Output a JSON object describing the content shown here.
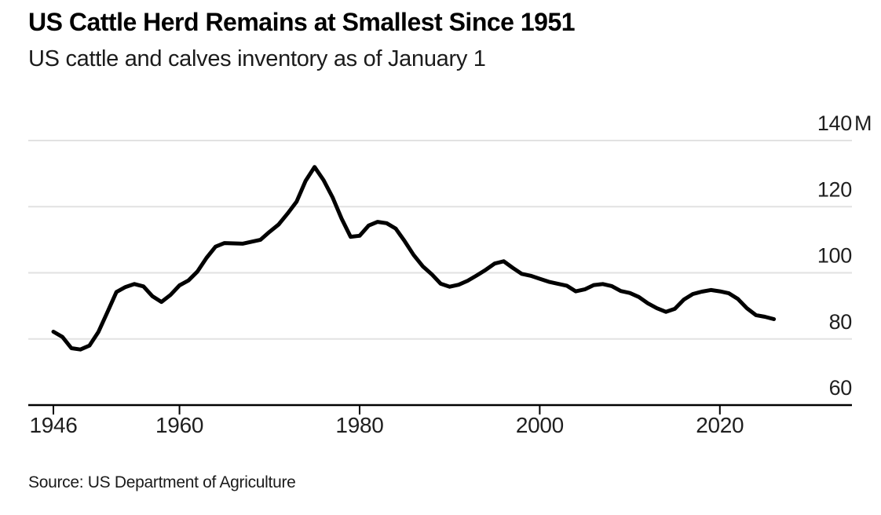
{
  "header": {
    "title": "US Cattle Herd Remains at Smallest Since 1951",
    "subtitle": "US cattle and calves inventory as of January 1"
  },
  "footer": {
    "source": "Source: US Department of Agriculture"
  },
  "chart_data": {
    "type": "line",
    "title": "US Cattle Herd Remains at Smallest Since 1951",
    "subtitle": "US cattle and calves inventory as of January 1",
    "series_name": "US cattle and calves inventory (million head, January 1)",
    "unit_suffix": "M",
    "xlim": [
      1943,
      2035
    ],
    "ylim": [
      60,
      140
    ],
    "grid": "horizontal",
    "legend": "none",
    "x_ticks": [
      {
        "value": 1946,
        "label": "1946"
      },
      {
        "value": 1960,
        "label": "1960"
      },
      {
        "value": 1980,
        "label": "1980"
      },
      {
        "value": 2000,
        "label": "2000"
      },
      {
        "value": 2020,
        "label": "2020"
      }
    ],
    "y_ticks": [
      {
        "value": 140,
        "label": "140",
        "suffix": "M",
        "gridline": true
      },
      {
        "value": 120,
        "label": "120",
        "suffix": "",
        "gridline": true
      },
      {
        "value": 100,
        "label": "100",
        "suffix": "",
        "gridline": true
      },
      {
        "value": 80,
        "label": "80",
        "suffix": "",
        "gridline": true
      },
      {
        "value": 60,
        "label": "60",
        "suffix": "",
        "gridline": false
      }
    ],
    "colors": {
      "line": "#000000",
      "grid": "#e2e2e2",
      "axis": "#000000",
      "tick_text": "#1f1f1f",
      "background": "#ffffff"
    },
    "points": [
      [
        1946,
        82.2
      ],
      [
        1947,
        80.6
      ],
      [
        1948,
        77.2
      ],
      [
        1949,
        76.8
      ],
      [
        1950,
        78.0
      ],
      [
        1951,
        82.1
      ],
      [
        1952,
        88.1
      ],
      [
        1953,
        94.2
      ],
      [
        1954,
        95.7
      ],
      [
        1955,
        96.6
      ],
      [
        1956,
        95.9
      ],
      [
        1957,
        92.9
      ],
      [
        1958,
        91.2
      ],
      [
        1959,
        93.3
      ],
      [
        1960,
        96.2
      ],
      [
        1961,
        97.7
      ],
      [
        1962,
        100.4
      ],
      [
        1963,
        104.5
      ],
      [
        1964,
        107.9
      ],
      [
        1965,
        109.0
      ],
      [
        1966,
        108.9
      ],
      [
        1967,
        108.8
      ],
      [
        1968,
        109.4
      ],
      [
        1969,
        110.0
      ],
      [
        1970,
        112.4
      ],
      [
        1971,
        114.6
      ],
      [
        1972,
        117.9
      ],
      [
        1973,
        121.5
      ],
      [
        1974,
        127.8
      ],
      [
        1975,
        132.0
      ],
      [
        1976,
        128.0
      ],
      [
        1977,
        122.8
      ],
      [
        1978,
        116.4
      ],
      [
        1979,
        110.9
      ],
      [
        1980,
        111.2
      ],
      [
        1981,
        114.3
      ],
      [
        1982,
        115.4
      ],
      [
        1983,
        115.0
      ],
      [
        1984,
        113.4
      ],
      [
        1985,
        109.6
      ],
      [
        1986,
        105.4
      ],
      [
        1987,
        102.0
      ],
      [
        1988,
        99.6
      ],
      [
        1989,
        96.7
      ],
      [
        1990,
        95.8
      ],
      [
        1991,
        96.4
      ],
      [
        1992,
        97.6
      ],
      [
        1993,
        99.2
      ],
      [
        1994,
        100.9
      ],
      [
        1995,
        102.8
      ],
      [
        1996,
        103.5
      ],
      [
        1997,
        101.5
      ],
      [
        1998,
        99.7
      ],
      [
        1999,
        99.1
      ],
      [
        2000,
        98.2
      ],
      [
        2001,
        97.3
      ],
      [
        2002,
        96.7
      ],
      [
        2003,
        96.1
      ],
      [
        2004,
        94.4
      ],
      [
        2005,
        95.0
      ],
      [
        2006,
        96.3
      ],
      [
        2007,
        96.6
      ],
      [
        2008,
        96.0
      ],
      [
        2009,
        94.5
      ],
      [
        2010,
        93.9
      ],
      [
        2011,
        92.7
      ],
      [
        2012,
        90.8
      ],
      [
        2013,
        89.3
      ],
      [
        2014,
        88.2
      ],
      [
        2015,
        89.1
      ],
      [
        2016,
        91.9
      ],
      [
        2017,
        93.6
      ],
      [
        2018,
        94.3
      ],
      [
        2019,
        94.8
      ],
      [
        2020,
        94.4
      ],
      [
        2021,
        93.8
      ],
      [
        2022,
        92.1
      ],
      [
        2023,
        89.3
      ],
      [
        2024,
        87.2
      ],
      [
        2025,
        86.7
      ],
      [
        2026,
        86.0
      ]
    ]
  }
}
